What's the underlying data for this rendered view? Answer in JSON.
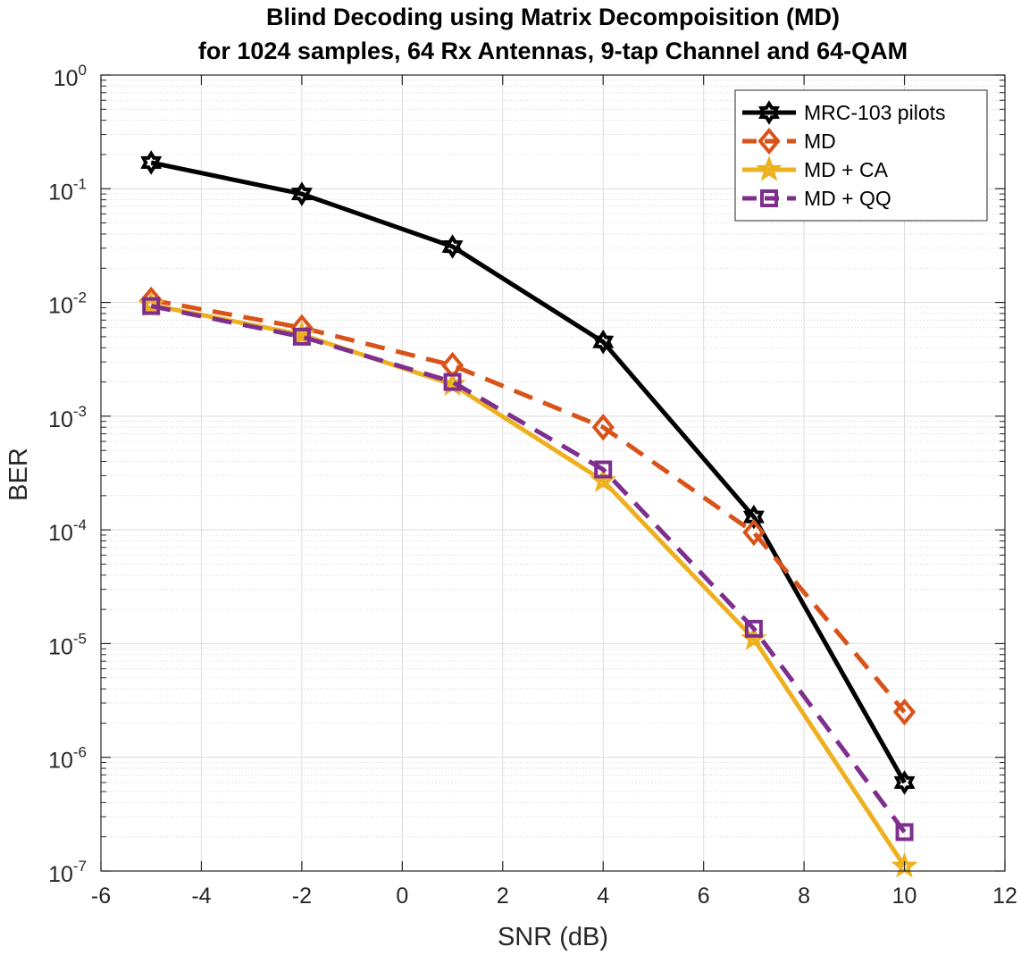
{
  "chart_data": {
    "type": "line",
    "title": [
      "Blind Decoding using Matrix Decompoisition (MD)",
      "for 1024 samples, 64 Rx Antennas, 9-tap Channel and 64-QAM"
    ],
    "xlabel": "SNR (dB)",
    "ylabel": "BER",
    "xlim": [
      -6,
      12
    ],
    "ylim": [
      1e-07,
      1
    ],
    "yscale": "log",
    "xticks": [
      -6,
      -4,
      -2,
      0,
      2,
      4,
      6,
      8,
      10,
      12
    ],
    "yticks": [
      {
        "base": "10",
        "exp": "-7",
        "value": 1e-07
      },
      {
        "base": "10",
        "exp": "-6",
        "value": 1e-06
      },
      {
        "base": "10",
        "exp": "-5",
        "value": 1e-05
      },
      {
        "base": "10",
        "exp": "-4",
        "value": 0.0001
      },
      {
        "base": "10",
        "exp": "-3",
        "value": 0.001
      },
      {
        "base": "10",
        "exp": "-2",
        "value": 0.01
      },
      {
        "base": "10",
        "exp": "-1",
        "value": 0.1
      },
      {
        "base": "10",
        "exp": "0",
        "value": 1
      }
    ],
    "grid": true,
    "legend_position": "top-right",
    "x": [
      -5,
      -2,
      1,
      4,
      7,
      10
    ],
    "series": [
      {
        "name": "MRC-103 pilots",
        "color": "#000000",
        "dash": "solid",
        "marker": "hexagram",
        "values": [
          0.17,
          0.09,
          0.031,
          0.0045,
          0.00013,
          6e-07
        ]
      },
      {
        "name": "MD",
        "color": "#D95319",
        "dash": "dashed",
        "marker": "diamond",
        "values": [
          0.0105,
          0.006,
          0.0028,
          0.0008,
          9.5e-05,
          2.5e-06
        ]
      },
      {
        "name": "MD + CA",
        "color": "#EDB120",
        "dash": "solid",
        "marker": "pentagram",
        "values": [
          0.0095,
          0.0052,
          0.0019,
          0.00027,
          1.1e-05,
          1.1e-07
        ]
      },
      {
        "name": "MD + QQ",
        "color": "#7E2F8E",
        "dash": "dashed",
        "marker": "square",
        "values": [
          0.0093,
          0.005,
          0.002,
          0.00034,
          1.35e-05,
          2.2e-07
        ]
      }
    ]
  }
}
